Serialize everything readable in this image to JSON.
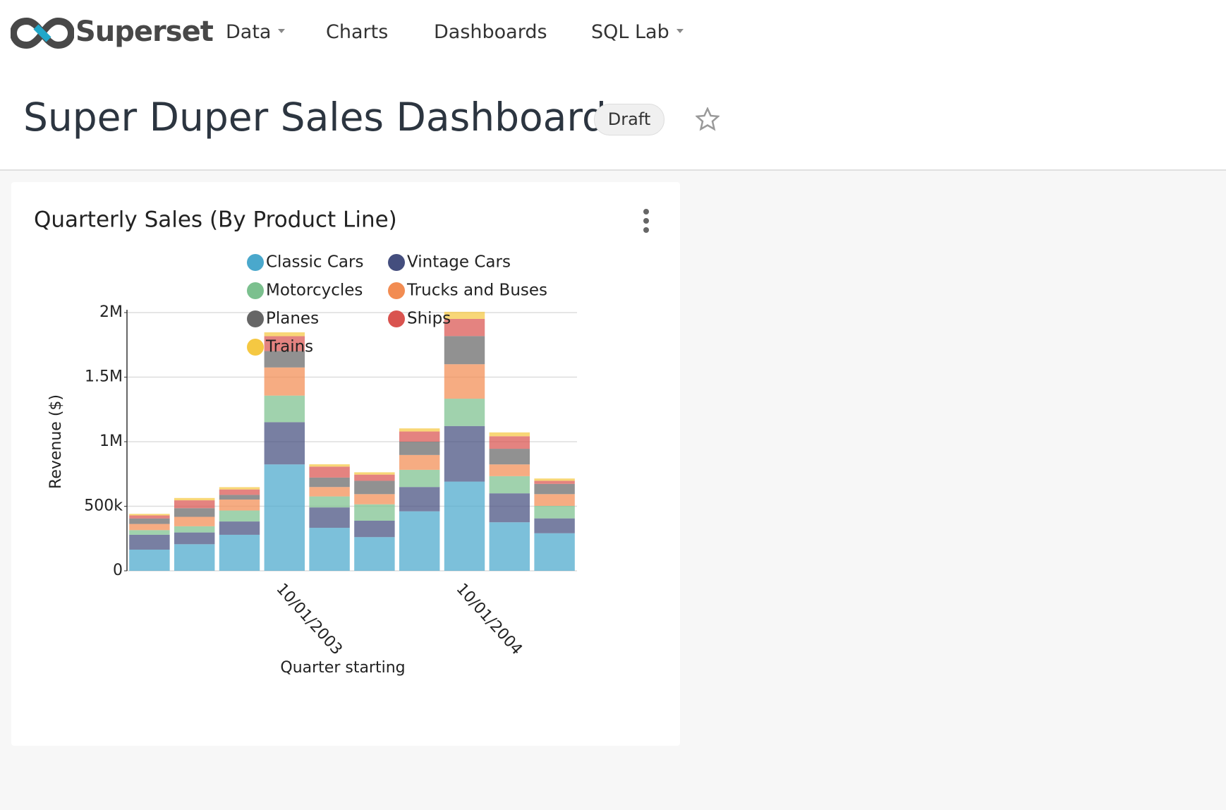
{
  "navbar": {
    "brand": "Superset",
    "items": [
      "Data",
      "Charts",
      "Dashboards",
      "SQL Lab"
    ]
  },
  "dashboard": {
    "title": "Super Duper Sales Dashboard",
    "status": "Draft"
  },
  "chart_data": {
    "type": "stacked_bar",
    "title": "Quarterly Sales (By Product Line)",
    "x_label": "Quarter starting",
    "y_label": "Revenue ($)",
    "categories": [
      null,
      null,
      null,
      "10/01/2003",
      null,
      null,
      null,
      "10/01/2004",
      null,
      null
    ],
    "series": [
      {
        "name": "Classic Cars",
        "color": "#4aa8cc",
        "values": [
          164000,
          206000,
          279000,
          824000,
          333000,
          261000,
          461000,
          691000,
          376000,
          291000
        ]
      },
      {
        "name": "Vintage Cars",
        "color": "#444e7e",
        "values": [
          115000,
          91000,
          103000,
          327000,
          158000,
          127000,
          188000,
          430000,
          224000,
          115000
        ]
      },
      {
        "name": "Motorcycles",
        "color": "#7bc08e",
        "values": [
          36000,
          48000,
          85000,
          206000,
          85000,
          127000,
          133000,
          212000,
          133000,
          97000
        ]
      },
      {
        "name": "Trucks and Buses",
        "color": "#f28c52",
        "values": [
          48000,
          73000,
          85000,
          218000,
          73000,
          79000,
          115000,
          267000,
          91000,
          91000
        ]
      },
      {
        "name": "Planes",
        "color": "#666666",
        "values": [
          42000,
          67000,
          36000,
          127000,
          73000,
          103000,
          103000,
          218000,
          121000,
          79000
        ]
      },
      {
        "name": "Ships",
        "color": "#d9534f",
        "values": [
          24000,
          61000,
          42000,
          115000,
          85000,
          48000,
          79000,
          133000,
          97000,
          24000
        ]
      },
      {
        "name": "Trains",
        "color": "#f5c842",
        "values": [
          12000,
          18000,
          18000,
          30000,
          18000,
          18000,
          24000,
          55000,
          30000,
          18000
        ]
      }
    ],
    "ylim": [
      0,
      2000000
    ],
    "yticks": [
      0,
      {
        "value": 500000,
        "label": "500k"
      },
      {
        "value": 1000000,
        "label": "1M"
      },
      {
        "value": 1500000,
        "label": "1.5M"
      },
      {
        "value": 2000000,
        "label": "2M"
      }
    ],
    "grid": true
  }
}
